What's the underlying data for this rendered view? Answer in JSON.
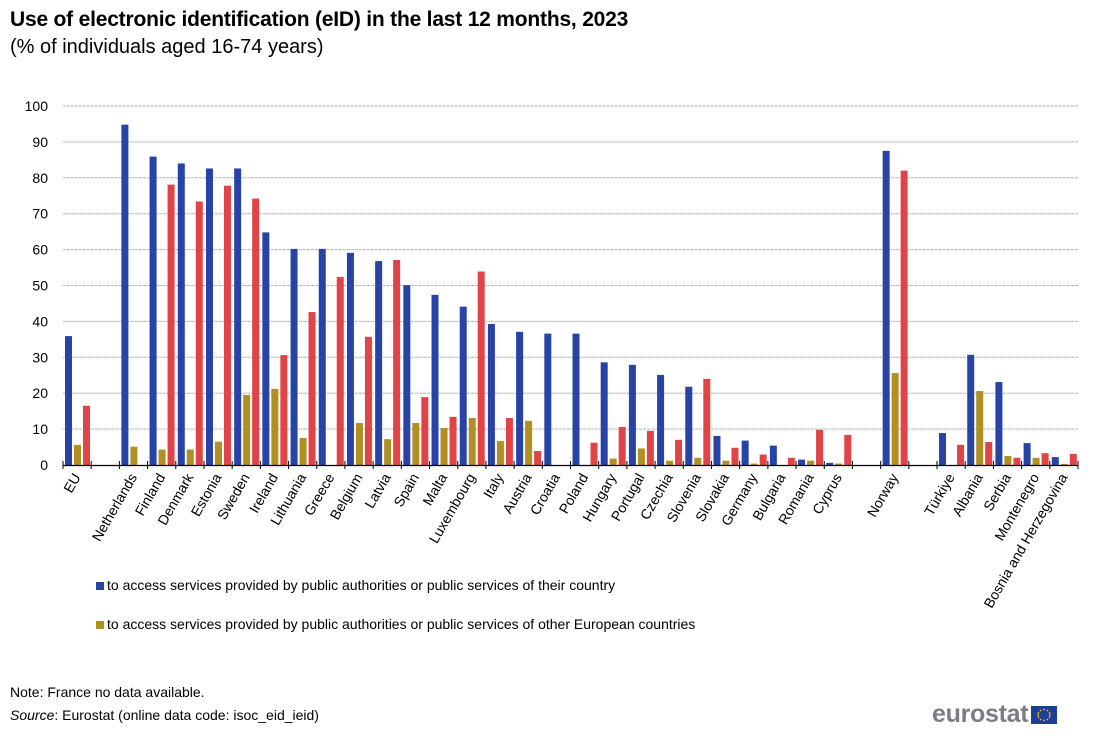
{
  "header": {
    "title": "Use of electronic identification (eID) in the last 12 months, 2023",
    "subtitle": "(% of individuals aged 16-74  years)"
  },
  "footer": {
    "note": "Note: France no data available.",
    "source_label": "Source",
    "source_text": ": Eurostat (online data code: isoc_eid_ieid)",
    "logo_text": "eurostat",
    "logo_icon": "eu-flag-icon"
  },
  "colors": {
    "blue": "#2843a6",
    "gold": "#b18f22",
    "red": "#e04446",
    "grid": "#b4b4b4",
    "axis": "#000000"
  },
  "chart_data": {
    "type": "bar",
    "title": "Use of electronic identification (eID) in the last 12 months, 2023",
    "subtitle": "(% of individuals aged 16-74  years)",
    "xlabel": "",
    "ylabel": "",
    "ylim": [
      0,
      100
    ],
    "yticks": [
      "0",
      "10",
      "20",
      "30",
      "40",
      "50",
      "60",
      "70",
      "80",
      "90",
      "100"
    ],
    "grid": true,
    "legend_position": "bottom-left",
    "categories": [
      "EU",
      "",
      "Netherlands",
      "Finland",
      "Denmark",
      "Estonia",
      "Sweden",
      "Ireland",
      "Lithuania",
      "Greece",
      "Belgium",
      "Latvia",
      "Spain",
      "Malta",
      "Luxembourg",
      "Italy",
      "Austria",
      "Croatia",
      "Poland",
      "Hungary",
      "Portugal",
      "Czechia",
      "Slovenia",
      "Slovakia",
      "Germany",
      "Bulgaria",
      "Romania",
      "Cyprus",
      "",
      "Norway",
      "",
      "Türkiye",
      "Albania",
      "Serbia",
      "Montenegro",
      "Bosnia and Herzegovina"
    ],
    "series": [
      {
        "name": "to access services provided by public authorities or public services of their country",
        "color_key": "blue",
        "show_in_legend": true,
        "values": [
          35.9,
          null,
          94.8,
          85.9,
          84.0,
          82.6,
          82.6,
          64.8,
          60.2,
          60.2,
          59.1,
          56.8,
          50.1,
          47.4,
          44.1,
          39.3,
          37.1,
          36.6,
          36.6,
          28.6,
          27.9,
          25.1,
          21.8,
          8.1,
          6.8,
          5.4,
          1.5,
          0.6,
          null,
          87.5,
          null,
          8.9,
          30.7,
          23.1,
          6.1,
          2.2
        ]
      },
      {
        "name": "to access services provided by public authorities or public services of other European countries",
        "color_key": "gold",
        "show_in_legend": true,
        "values": [
          5.6,
          null,
          5.1,
          4.3,
          4.3,
          6.5,
          19.5,
          21.2,
          7.5,
          null,
          11.7,
          7.2,
          11.7,
          10.3,
          13.1,
          6.7,
          12.3,
          null,
          null,
          1.8,
          4.6,
          1.2,
          2.0,
          1.2,
          0.4,
          null,
          1.2,
          0.4,
          null,
          25.6,
          null,
          null,
          20.6,
          2.5,
          2.0,
          0.3
        ]
      },
      {
        "name": "",
        "color_key": "red",
        "show_in_legend": false,
        "values": [
          16.5,
          null,
          null,
          78.1,
          73.4,
          77.8,
          74.2,
          30.6,
          42.6,
          52.4,
          35.7,
          57.1,
          18.9,
          13.4,
          53.9,
          13.1,
          3.9,
          null,
          6.2,
          10.6,
          9.5,
          7.0,
          24.0,
          4.8,
          2.9,
          2.0,
          9.8,
          8.4,
          null,
          82.0,
          null,
          5.6,
          6.4,
          2.0,
          3.3,
          3.1
        ]
      }
    ]
  }
}
